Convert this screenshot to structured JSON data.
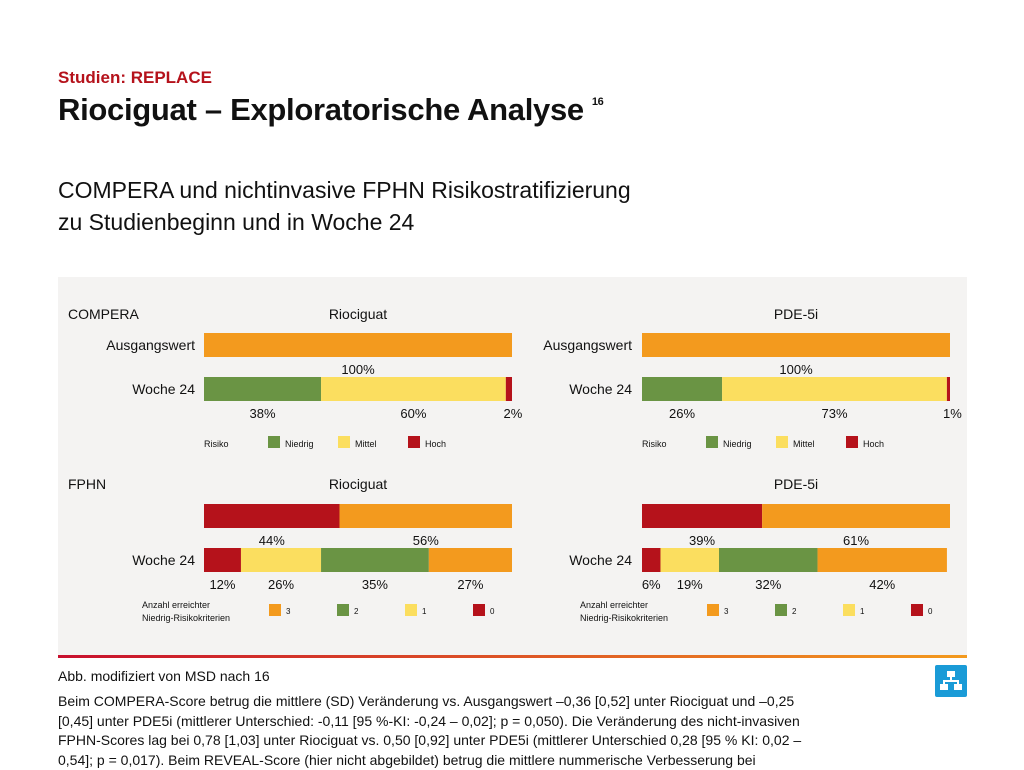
{
  "header": {
    "kicker": "Studien: REPLACE",
    "title": "Riociguat – Exploratorische Analyse",
    "title_ref": "16"
  },
  "subtitle": {
    "line1": "COMPERA und nichtinvasive FPHN Risikostratifizierung",
    "line2": "zu Studienbeginn und in Woche 24"
  },
  "colors": {
    "niedrig": "#6a9444",
    "mittel": "#fbde5f",
    "hoch": "#b5121b",
    "orange": "#f39a1e",
    "panel_bg": "#f4f3f2"
  },
  "chart_data": [
    {
      "type": "bar",
      "section": "COMPERA",
      "title": "Riociguat",
      "categories": [
        "Ausgangswert",
        "Woche 24"
      ],
      "series": [
        {
          "name": "Niedrig",
          "values": [
            0,
            38
          ]
        },
        {
          "name": "Mittel",
          "values": [
            100,
            60
          ]
        },
        {
          "name": "Hoch",
          "values": [
            0,
            2
          ]
        }
      ],
      "labels": [
        [
          "100%"
        ],
        [
          "38%",
          "60%",
          "2%"
        ]
      ],
      "legend_title": "Risiko"
    },
    {
      "type": "bar",
      "section": "COMPERA",
      "title": "PDE-5i",
      "categories": [
        "Ausgangswert",
        "Woche 24"
      ],
      "series": [
        {
          "name": "Niedrig",
          "values": [
            0,
            26
          ]
        },
        {
          "name": "Mittel",
          "values": [
            100,
            73
          ]
        },
        {
          "name": "Hoch",
          "values": [
            0,
            1
          ]
        }
      ],
      "labels": [
        [
          "100%"
        ],
        [
          "26%",
          "73%",
          "1%"
        ]
      ],
      "legend_title": "Risiko"
    },
    {
      "type": "bar",
      "section": "FPHN",
      "title": "Riociguat",
      "categories": [
        "",
        "Woche 24"
      ],
      "series": [
        {
          "name": "0",
          "values": [
            44,
            12
          ]
        },
        {
          "name": "1",
          "values": [
            0,
            26
          ]
        },
        {
          "name": "2",
          "values": [
            0,
            35
          ]
        },
        {
          "name": "3",
          "values": [
            56,
            27
          ]
        }
      ],
      "labels": [
        [
          "44%",
          "56%"
        ],
        [
          "12%",
          "26%",
          "35%",
          "27%"
        ]
      ],
      "legend_title": "Anzahl erreichter Niedrig-Risikokriterien"
    },
    {
      "type": "bar",
      "section": "FPHN",
      "title": "PDE-5i",
      "categories": [
        "",
        "Woche 24"
      ],
      "series": [
        {
          "name": "0",
          "values": [
            39,
            6
          ]
        },
        {
          "name": "1",
          "values": [
            0,
            19
          ]
        },
        {
          "name": "2",
          "values": [
            0,
            32
          ]
        },
        {
          "name": "3",
          "values": [
            61,
            42
          ]
        }
      ],
      "labels": [
        [
          "39%",
          "61%"
        ],
        [
          "6%",
          "19%",
          "32%",
          "42%"
        ]
      ],
      "legend_title": "Anzahl erreichter Niedrig-Risikokriterien"
    }
  ],
  "figure_text": {
    "compera_label": "COMPERA",
    "fphn_label": "FPHN",
    "baseline_label": "Ausgangswert",
    "week24_label": "Woche 24",
    "risk_legend": {
      "title": "Risiko",
      "items": [
        "Niedrig",
        "Mittel",
        "Hoch"
      ]
    },
    "criteria_legend": {
      "title_line1": "Anzahl erreichter",
      "title_line2": "Niedrig-Risikokriterien",
      "items": [
        "3",
        "2",
        "1",
        "0"
      ]
    }
  },
  "caption": "Abb. modifiziert von MSD nach 16",
  "body_text": "Beim COMPERA-Score betrug die mittlere (SD) Veränderung vs. Ausgangswert –0,36 [0,52] unter Riociguat und –0,25 [0,45] unter PDE5i (mittlerer Unterschied: -0,11 [95 %-KI: -0,24 – 0,02]; p = 0,050). Die Veränderung des nicht-invasiven FPHN-Scores lag bei 0,78 [1,03] unter Riociguat vs. 0,50 [0,92] unter PDE5i (mittlerer Unterschied 0,28 [95 % KI: 0,02 – 0,54]; p = 0,017). Beim REVEAL-Score (hier nicht abgebildet) betrug die mittlere nummerische Verbesserung bei",
  "icons": {
    "org_chart": "org-chart-icon"
  }
}
